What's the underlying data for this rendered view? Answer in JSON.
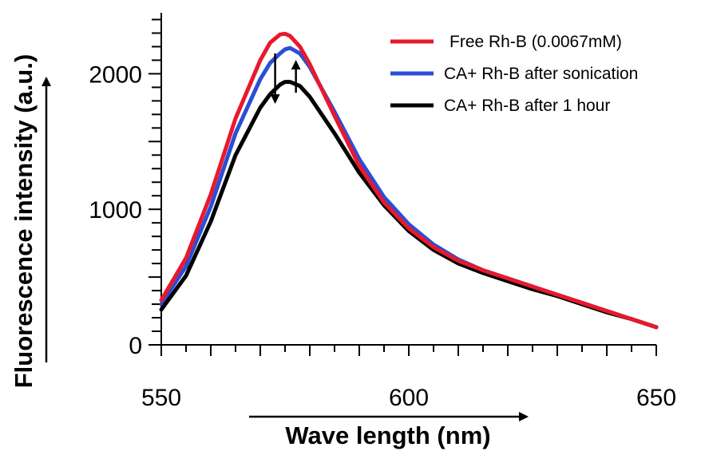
{
  "chart_data": {
    "type": "line",
    "xlabel": "Wave length (nm)",
    "ylabel": "Fluorescence intensity (a.u.)",
    "xlim": [
      550,
      650
    ],
    "ylim": [
      0,
      2450
    ],
    "x_ticks": [
      550,
      600,
      650
    ],
    "y_ticks": [
      0,
      1000,
      2000
    ],
    "x": [
      550,
      555,
      560,
      565,
      570,
      572,
      574,
      575,
      576,
      578,
      580,
      585,
      590,
      595,
      600,
      605,
      610,
      615,
      620,
      625,
      630,
      635,
      640,
      645,
      650
    ],
    "series": [
      {
        "name": "Free Rh-B (0.0067mM)",
        "color": "#e8192c",
        "values": [
          330,
          640,
          1110,
          1670,
          2100,
          2230,
          2290,
          2295,
          2280,
          2200,
          2070,
          1690,
          1320,
          1050,
          860,
          720,
          620,
          550,
          490,
          430,
          370,
          310,
          250,
          190,
          130
        ]
      },
      {
        "name": "CA+ Rh-B after sonication",
        "color": "#2a4ed6",
        "values": [
          300,
          580,
          1020,
          1560,
          1960,
          2080,
          2150,
          2180,
          2190,
          2150,
          2050,
          1720,
          1370,
          1090,
          890,
          740,
          630,
          550,
          490,
          430,
          370,
          310,
          250,
          190,
          130
        ]
      },
      {
        "name": "CA+ Rh-B after 1 hour",
        "color": "#000000",
        "values": [
          260,
          510,
          910,
          1400,
          1750,
          1850,
          1920,
          1940,
          1940,
          1910,
          1830,
          1560,
          1270,
          1030,
          840,
          700,
          600,
          530,
          470,
          410,
          360,
          300,
          240,
          190,
          130
        ]
      }
    ],
    "legend_position": "top-right",
    "grid": false
  }
}
